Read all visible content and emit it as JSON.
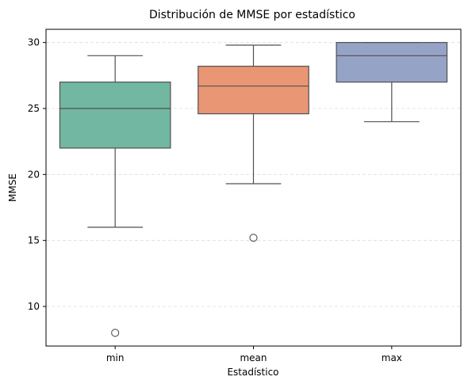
{
  "chart_data": {
    "type": "box",
    "title": "Distribución de MMSE por estadístico",
    "xlabel": "Estadístico",
    "ylabel": "MMSE",
    "ylim": [
      7,
      31
    ],
    "yticks": [
      10,
      15,
      20,
      25,
      30
    ],
    "grid": "y-dashed",
    "categories": [
      "min",
      "mean",
      "max"
    ],
    "boxes": [
      {
        "category": "min",
        "color": "#72b7a1",
        "whisker_low": 16,
        "q1": 22,
        "median": 25,
        "q3": 27,
        "whisker_high": 29,
        "outliers": [
          8
        ]
      },
      {
        "category": "mean",
        "color": "#e99675",
        "whisker_low": 19.3,
        "q1": 24.6,
        "median": 26.7,
        "q3": 28.2,
        "whisker_high": 29.8,
        "outliers": [
          15.2
        ]
      },
      {
        "category": "max",
        "color": "#95a3c6",
        "whisker_low": 24,
        "q1": 27,
        "median": 29,
        "q3": 30,
        "whisker_high": 30,
        "outliers": []
      }
    ]
  }
}
